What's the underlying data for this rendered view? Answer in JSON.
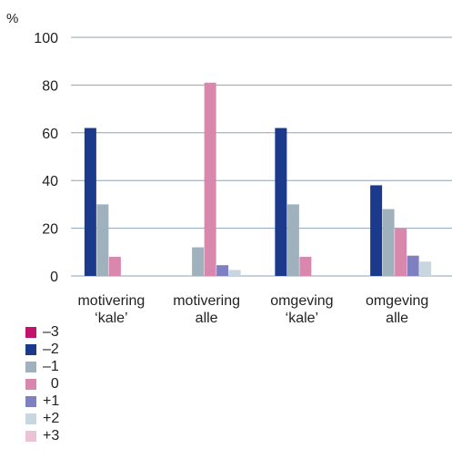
{
  "chart_data": {
    "type": "bar",
    "unit_label": "%",
    "ylim": [
      0,
      100
    ],
    "yticks": [
      0,
      20,
      40,
      60,
      80,
      100
    ],
    "grid": true,
    "legend_position": "bottom-left",
    "categories": [
      [
        "motivering",
        "‘kale’"
      ],
      [
        "motivering",
        "alle"
      ],
      [
        "omgeving",
        "‘kale’"
      ],
      [
        "omgeving",
        "alle"
      ]
    ],
    "series": [
      {
        "name": "–3",
        "color": "#c2126e",
        "values": [
          0,
          0,
          0,
          0
        ]
      },
      {
        "name": "–2",
        "color": "#1b3a8c",
        "values": [
          62,
          0,
          62,
          38
        ]
      },
      {
        "name": "–1",
        "color": "#9fb1bc",
        "values": [
          30,
          12,
          30,
          28
        ]
      },
      {
        "name": "  0",
        "color": "#d987ad",
        "values": [
          8,
          81,
          8,
          20
        ]
      },
      {
        "name": "+1",
        "color": "#7f80bf",
        "values": [
          0,
          4.5,
          0,
          8.5
        ]
      },
      {
        "name": "+2",
        "color": "#c7d6df",
        "values": [
          0,
          2.5,
          0,
          6
        ]
      },
      {
        "name": "+3",
        "color": "#ecc2d5",
        "values": [
          0,
          0,
          0,
          0
        ]
      }
    ]
  }
}
